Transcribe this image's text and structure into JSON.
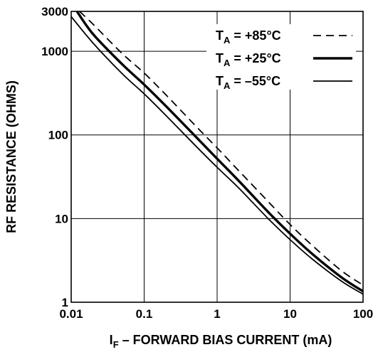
{
  "chart_data": {
    "type": "line",
    "title": "",
    "xlabel": {
      "main": "I",
      "sub": "F",
      "rest": " – FORWARD BIAS CURRENT (mA)"
    },
    "ylabel": "RF RESISTANCE (OHMS)",
    "xscale": "log",
    "yscale": "log",
    "xlim": [
      0.01,
      100
    ],
    "ylim": [
      1,
      3000
    ],
    "grid": true,
    "legend_position": "top-right",
    "x_ticks": [
      0.01,
      0.1,
      1,
      10,
      100
    ],
    "x_tick_labels": [
      "0.01",
      "0.1",
      "1",
      "10",
      "100"
    ],
    "y_ticks": [
      1,
      10,
      100,
      1000,
      3000
    ],
    "y_tick_labels": [
      "1",
      "10",
      "100",
      "1000",
      "3000"
    ],
    "series": [
      {
        "name": {
          "main": "T",
          "sub": "A",
          "rest": " = +85°C"
        },
        "style": "dashed",
        "x": [
          0.013,
          0.02,
          0.05,
          0.1,
          0.2,
          0.5,
          1,
          2,
          5,
          10,
          20,
          50,
          100
        ],
        "y": [
          3000,
          2100,
          940,
          550,
          300,
          130,
          70,
          37,
          16,
          8.5,
          4.8,
          2.4,
          1.6
        ]
      },
      {
        "name": {
          "main": "T",
          "sub": "A",
          "rest": " = +25°C"
        },
        "style": "thick",
        "x": [
          0.012,
          0.02,
          0.05,
          0.1,
          0.2,
          0.5,
          1,
          2,
          5,
          10,
          20,
          50,
          100
        ],
        "y": [
          3000,
          1600,
          700,
          400,
          220,
          97,
          52,
          28,
          12,
          6.6,
          3.8,
          2.0,
          1.35
        ]
      },
      {
        "name": {
          "main": "T",
          "sub": "A",
          "rest": " = –55°C"
        },
        "style": "thin",
        "x": [
          0.01,
          0.02,
          0.05,
          0.1,
          0.2,
          0.5,
          1,
          2,
          5,
          10,
          20,
          50,
          100
        ],
        "y": [
          2600,
          1250,
          540,
          310,
          170,
          75,
          41,
          23,
          10,
          5.6,
          3.3,
          1.8,
          1.25
        ]
      }
    ]
  }
}
